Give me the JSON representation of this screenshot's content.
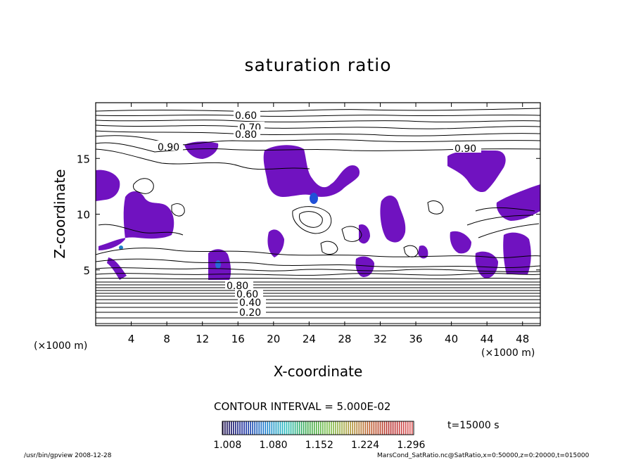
{
  "chart_data": {
    "type": "heatmap",
    "title": "saturation ratio",
    "xlabel": "X-coordinate",
    "ylabel": "Z-coordinate",
    "x_unit": "(×1000 m)",
    "z_unit": "(×1000 m)",
    "xlim": [
      0,
      50
    ],
    "ylim": [
      0,
      20
    ],
    "x_ticks": [
      4,
      8,
      12,
      16,
      20,
      24,
      28,
      32,
      36,
      40,
      44,
      48
    ],
    "y_ticks": [
      5,
      10,
      15
    ],
    "contour_labels": [
      "0.60",
      "0.70",
      "0.80",
      "0.90",
      "0.90",
      "0.20",
      "0.40",
      "0.60",
      "0.80"
    ],
    "contour_interval_text": "CONTOUR INTERVAL = 5.000E-02",
    "colorbar": {
      "ticks": [
        "1.008",
        "1.080",
        "1.152",
        "1.224",
        "1.296"
      ],
      "min": 1.0,
      "max": 1.3,
      "colors": [
        "#1a0a4a",
        "#1c2fa0",
        "#1f7fd0",
        "#2bbfc0",
        "#3aa84a",
        "#7ac04a",
        "#b0a040",
        "#c06030",
        "#b83030",
        "#e06060"
      ]
    },
    "time_label": "t=15000 s",
    "supersaturated_fill_color": "#7012c0"
  },
  "footer": {
    "left": "/usr/bin/gpview   2008-12-28",
    "right": "MarsCond_SatRatio.nc@SatRatio,x=0:50000,z=0:20000,t=015000"
  }
}
